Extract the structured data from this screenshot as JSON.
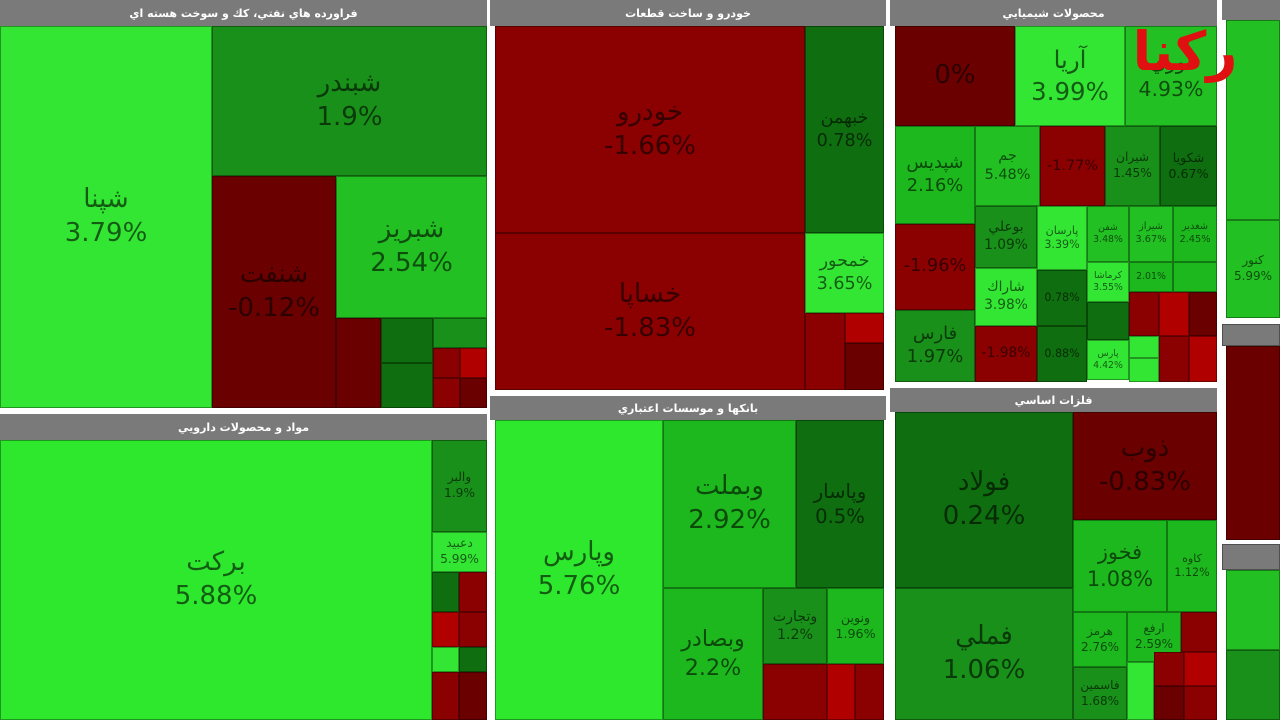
{
  "logo": "رکنا",
  "sectors": [
    {
      "title": "فراورده هاي نفتي، كك و سوخت هسته اي",
      "tiles": [
        {
          "name": "شپنا",
          "change": "3.79%"
        },
        {
          "name": "شبندر",
          "change": "1.9%"
        },
        {
          "name": "شنفت",
          "change": "-0.12%"
        },
        {
          "name": "شبريز",
          "change": "2.54%"
        }
      ]
    },
    {
      "title": "خودرو و ساخت قطعات",
      "tiles": [
        {
          "name": "خودرو",
          "change": "-1.66%"
        },
        {
          "name": "خساپا",
          "change": "-1.83%"
        },
        {
          "name": "خبهمن",
          "change": "0.78%"
        },
        {
          "name": "خمحور",
          "change": "3.65%"
        }
      ]
    },
    {
      "title": "محصولات شيميايي",
      "tiles": [
        {
          "change": "0%"
        },
        {
          "name": "آريا",
          "change": "3.99%"
        },
        {
          "name": "نوري",
          "change": "4.93%"
        },
        {
          "name": "شپديس",
          "change": "2.16%"
        },
        {
          "name": "جم",
          "change": "5.48%"
        },
        {
          "change": "-1.77%"
        },
        {
          "name": "شيران",
          "change": "1.45%"
        },
        {
          "name": "شكويا",
          "change": "0.67%"
        },
        {
          "change": "-1.96%"
        },
        {
          "name": "بوعلي",
          "change": "1.09%"
        },
        {
          "name": "پارسان",
          "change": "3.39%"
        },
        {
          "name": "شفن",
          "change": "3.48%"
        },
        {
          "name": "شيراز",
          "change": "3.67%"
        },
        {
          "name": "شغدير",
          "change": "2.45%"
        },
        {
          "name": "شاراك",
          "change": "3.98%"
        },
        {
          "name": "فارس",
          "change": "1.97%"
        },
        {
          "change": "-1.98%"
        },
        {
          "change": "0.78%"
        },
        {
          "name": "كرماشا",
          "change": "3.55%"
        },
        {
          "change": "2.01%"
        },
        {
          "change": "0.88%"
        },
        {
          "name": "پارس",
          "change": "4.42%"
        }
      ]
    },
    {
      "title": "مواد و محصولات دارويي",
      "tiles": [
        {
          "name": "بركت",
          "change": "5.88%"
        },
        {
          "name": "والبر",
          "change": "1.9%"
        },
        {
          "name": "دعبيد",
          "change": "5.99%"
        }
      ]
    },
    {
      "title": "بانكها و موسسات اعتباري",
      "tiles": [
        {
          "name": "وپارس",
          "change": "5.76%"
        },
        {
          "name": "وبملت",
          "change": "2.92%"
        },
        {
          "name": "وپاسار",
          "change": "0.5%"
        },
        {
          "name": "وبصادر",
          "change": "2.2%"
        },
        {
          "name": "وتجارت",
          "change": "1.2%"
        },
        {
          "name": "ونوين",
          "change": "1.96%"
        }
      ]
    },
    {
      "title": "فلزات اساسي",
      "tiles": [
        {
          "name": "فولاد",
          "change": "0.24%"
        },
        {
          "name": "ذوب",
          "change": "-0.83%"
        },
        {
          "name": "فملي",
          "change": "1.06%"
        },
        {
          "name": "فخوز",
          "change": "1.08%"
        },
        {
          "name": "كاوه",
          "change": "1.12%"
        },
        {
          "name": "هرمز",
          "change": "2.76%"
        },
        {
          "name": "ارفع",
          "change": "2.59%"
        },
        {
          "name": "فاسمين",
          "change": "1.68%"
        }
      ]
    },
    {
      "title": "",
      "tiles": [
        {
          "name": "كنور",
          "change": "5.99%"
        }
      ]
    }
  ]
}
